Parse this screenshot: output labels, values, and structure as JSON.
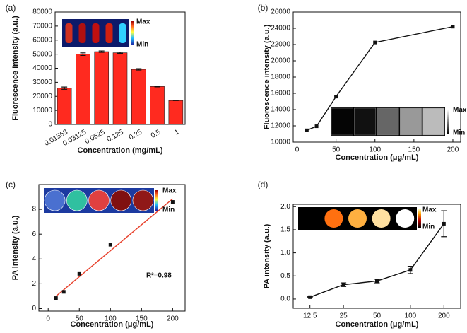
{
  "chart_data": [
    {
      "type": "bar",
      "panel_label": "(a)",
      "categories": [
        "0.01563",
        "0.03125",
        "0.0625",
        "0.125",
        "0.25",
        "0.5",
        "1"
      ],
      "values": [
        25800,
        50000,
        51800,
        51000,
        39200,
        27000,
        17000
      ],
      "errors": [
        800,
        900,
        500,
        500,
        500,
        300,
        0
      ],
      "color": "#ff2a1f",
      "ylim": [
        0,
        80000
      ],
      "yticks": [
        0,
        10000,
        20000,
        30000,
        40000,
        50000,
        60000,
        70000,
        80000
      ],
      "xlabel": "Concentration (mg/mL)",
      "ylabel": "Fluorescence Intensity (a.u.)",
      "inset_labels": [
        "Max",
        "Min"
      ]
    },
    {
      "type": "line",
      "panel_label": "(b)",
      "x": [
        12.5,
        25,
        50,
        100,
        200
      ],
      "values": [
        11450,
        11950,
        15600,
        22250,
        24200
      ],
      "color": "#111111",
      "xlim": [
        -5,
        210
      ],
      "xticks": [
        0,
        50,
        100,
        150,
        200
      ],
      "ylim": [
        10000,
        26000
      ],
      "yticks": [
        10000,
        12000,
        14000,
        16000,
        18000,
        20000,
        22000,
        24000,
        26000
      ],
      "xlabel": "Concentration (μg/mL)",
      "ylabel": "Fluorescence intensity (a.u.)",
      "inset_labels": [
        "Max",
        "Min"
      ]
    },
    {
      "type": "scatter",
      "panel_label": "(c)",
      "x": [
        12.5,
        25,
        50,
        100,
        200
      ],
      "values": [
        0.85,
        1.35,
        2.8,
        5.15,
        8.6
      ],
      "color": "#111111",
      "fit": {
        "x": [
          12.5,
          200
        ],
        "values": [
          1.0,
          8.85
        ],
        "color": "#e8412c"
      },
      "annotation": "R²=0.98",
      "xlim": [
        -15,
        220
      ],
      "xticks": [
        0,
        50,
        100,
        150,
        200
      ],
      "ylim": [
        -0.2,
        10
      ],
      "yticks": [
        0,
        2,
        4,
        6,
        8
      ],
      "xlabel": "Concentration (μg/mL)",
      "ylabel": "PA intensity (a.u.)",
      "inset_labels": [
        "Max",
        "Min"
      ]
    },
    {
      "type": "line",
      "panel_label": "(d)",
      "categories": [
        "12.5",
        "25",
        "50",
        "100",
        "200"
      ],
      "values": [
        0.04,
        0.31,
        0.39,
        0.63,
        1.63
      ],
      "errors": [
        0.01,
        0.04,
        0.04,
        0.08,
        0.28
      ],
      "color": "#111111",
      "ylim": [
        -0.2,
        2.05
      ],
      "yticks": [
        {
          "value": 0,
          "label": "0.0"
        },
        0.5,
        {
          "value": 1,
          "label": "1.0"
        },
        1.5,
        {
          "value": 2,
          "label": "2.0"
        }
      ],
      "xlabel": "Concentration (μg/mL)",
      "ylabel": "PA intensity (a.u.)",
      "inset_labels": [
        "Max",
        "Min"
      ]
    }
  ]
}
